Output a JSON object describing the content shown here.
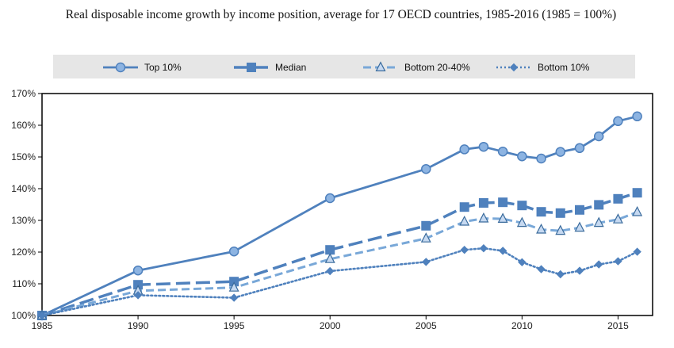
{
  "chart_data": {
    "type": "line",
    "title": "Real disposable income growth by income position, average for 17 OECD countries, 1985-2016 (1985 = 100%)",
    "xlabel": "",
    "ylabel": "",
    "xlim": [
      1985,
      2016.8
    ],
    "ylim": [
      100,
      170
    ],
    "x_ticks": [
      1985,
      1990,
      1995,
      2000,
      2005,
      2010,
      2015
    ],
    "y_ticks": [
      100,
      110,
      120,
      130,
      140,
      150,
      160,
      170
    ],
    "y_tick_labels": [
      "100%",
      "110%",
      "120%",
      "130%",
      "140%",
      "150%",
      "160%",
      "170%"
    ],
    "grid": false,
    "legend_position": "top",
    "series": [
      {
        "name": "Top 10%",
        "style": "solid",
        "marker": "circle",
        "color": "#4f81bd",
        "x": [
          1985,
          1990,
          1995,
          2000,
          2005,
          2007,
          2008,
          2009,
          2010,
          2011,
          2012,
          2013,
          2014,
          2015,
          2016
        ],
        "values": [
          100,
          114.2,
          120.2,
          137,
          146.2,
          152.4,
          153.2,
          151.7,
          150.2,
          149.5,
          151.6,
          152.8,
          156.5,
          161.3,
          162.8
        ]
      },
      {
        "name": "Median",
        "style": "longdash",
        "marker": "square",
        "color": "#4f81bd",
        "x": [
          1985,
          1990,
          1995,
          2000,
          2005,
          2007,
          2008,
          2009,
          2010,
          2011,
          2012,
          2013,
          2014,
          2015,
          2016
        ],
        "values": [
          100,
          109.7,
          110.7,
          120.7,
          128.3,
          134.2,
          135.5,
          135.7,
          134.7,
          132.7,
          132.3,
          133.3,
          134.9,
          136.8,
          138.7
        ]
      },
      {
        "name": "Bottom 20-40%",
        "style": "dash",
        "marker": "triangle",
        "color": "#79a8d8",
        "x": [
          1985,
          1990,
          1995,
          2000,
          2005,
          2007,
          2008,
          2009,
          2010,
          2011,
          2012,
          2013,
          2014,
          2015,
          2016
        ],
        "values": [
          100,
          107.8,
          108.8,
          117.8,
          124.3,
          129.6,
          130.6,
          130.5,
          129.2,
          127.1,
          126.7,
          127.7,
          129.2,
          130.3,
          132.6
        ]
      },
      {
        "name": "Bottom 10%",
        "style": "dotted",
        "marker": "diamond",
        "color": "#4f81bd",
        "x": [
          1985,
          1990,
          1995,
          2000,
          2005,
          2007,
          2008,
          2009,
          2010,
          2011,
          2012,
          2013,
          2014,
          2015,
          2016
        ],
        "values": [
          100,
          106.4,
          105.6,
          114,
          116.9,
          120.7,
          121.2,
          120.4,
          116.8,
          114.6,
          113,
          114.1,
          116.1,
          117.1,
          120.1
        ]
      }
    ]
  }
}
